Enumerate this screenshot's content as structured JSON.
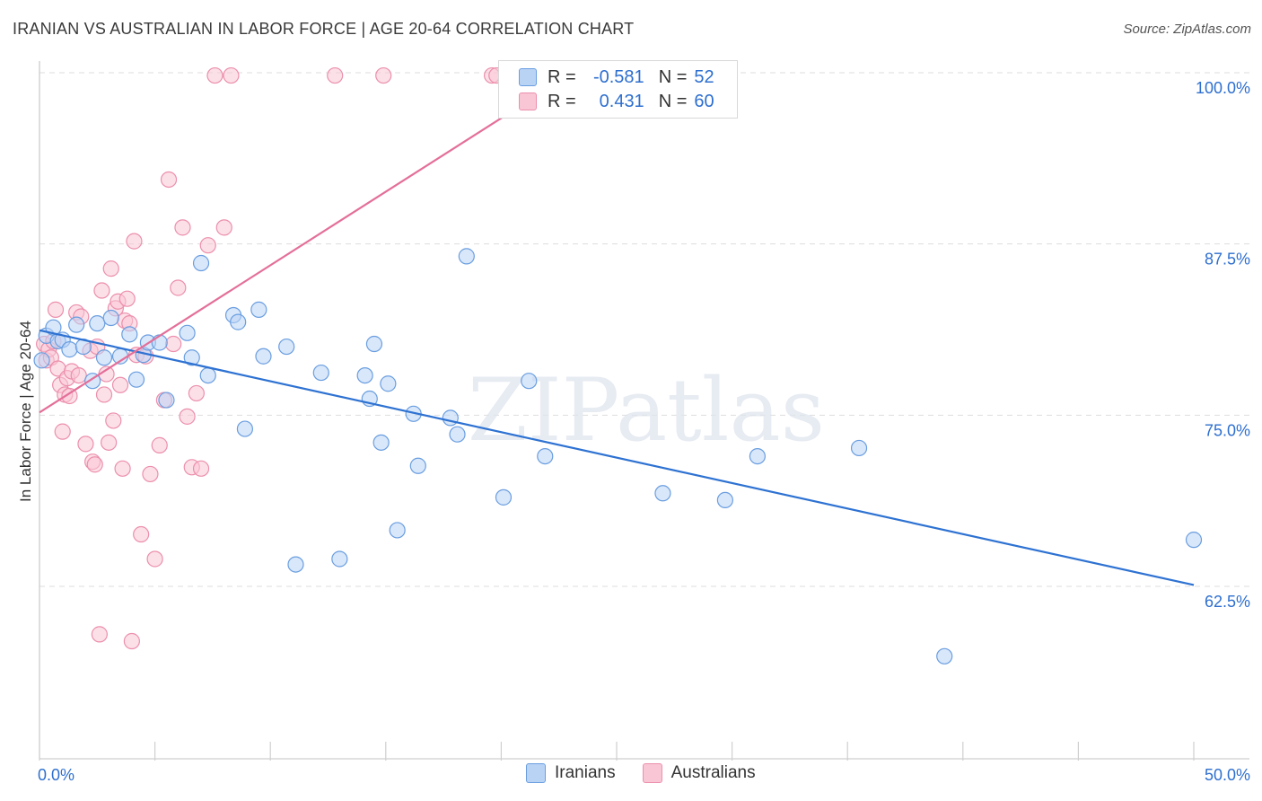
{
  "title": "IRANIAN VS AUSTRALIAN IN LABOR FORCE | AGE 20-64 CORRELATION CHART",
  "source": "Source: ZipAtlas.com",
  "watermark": "ZIPatlas",
  "colors": {
    "blue_fill": "#b9d3f5",
    "blue_stroke": "#6a9ee0",
    "blue_line": "#2e72d2",
    "pink_fill": "#f9c6d5",
    "pink_stroke": "#ec8fac",
    "pink_line": "#e46f99",
    "tick_label": "#2e6fcf",
    "grid": "#dddddd"
  },
  "legend_top": {
    "rows": [
      {
        "r_label": "R =",
        "r_value": "-0.581",
        "n_label": "N =",
        "n_value": "52"
      },
      {
        "r_label": "R =",
        "r_value": " 0.431",
        "n_label": "N =",
        "n_value": "60"
      }
    ]
  },
  "chart_data": {
    "type": "scatter",
    "title": "IRANIAN VS AUSTRALIAN IN LABOR FORCE | AGE 20-64 CORRELATION CHART",
    "xlabel": "",
    "ylabel": "In Labor Force | Age 20-64",
    "xlim": [
      0,
      50
    ],
    "ylim": [
      50,
      100.5
    ],
    "x_tick_labels": [
      "0.0%",
      "50.0%"
    ],
    "y_ticks": [
      62.5,
      75.0,
      87.5,
      100.0
    ],
    "y_tick_labels": [
      "62.5%",
      "75.0%",
      "87.5%",
      "100.0%"
    ],
    "grid": true,
    "legend_position": "bottom",
    "series": [
      {
        "name": "Iranians",
        "r": -0.581,
        "n": 52,
        "trend": {
          "x": [
            0.0,
            50.0
          ],
          "y": [
            81.2,
            62.6
          ]
        },
        "x": [
          0.1,
          0.3,
          0.6,
          0.8,
          1.0,
          1.3,
          1.6,
          1.9,
          2.3,
          2.5,
          2.8,
          3.1,
          3.5,
          3.9,
          4.2,
          4.5,
          4.7,
          5.2,
          5.5,
          6.4,
          6.6,
          7.0,
          7.3,
          8.4,
          8.6,
          8.9,
          9.5,
          9.7,
          10.7,
          11.1,
          12.2,
          13.0,
          14.1,
          14.3,
          14.5,
          14.8,
          15.1,
          15.5,
          16.2,
          16.4,
          17.8,
          18.1,
          18.5,
          20.1,
          21.2,
          21.9,
          27.0,
          29.7,
          31.1,
          35.5,
          39.2,
          50.0
        ],
        "y": [
          79.0,
          80.8,
          81.4,
          80.4,
          80.5,
          79.8,
          81.6,
          80.0,
          77.5,
          81.7,
          79.2,
          82.1,
          79.3,
          80.9,
          77.6,
          79.4,
          80.3,
          80.3,
          76.1,
          81.0,
          79.2,
          86.1,
          77.9,
          82.3,
          81.8,
          74.0,
          82.7,
          79.3,
          80.0,
          64.1,
          78.1,
          64.5,
          77.9,
          76.2,
          80.2,
          73.0,
          77.3,
          66.6,
          75.1,
          71.3,
          74.8,
          73.6,
          86.6,
          69.0,
          77.5,
          72.0,
          69.3,
          68.8,
          72.0,
          72.6,
          57.4,
          65.9
        ]
      },
      {
        "name": "Australians",
        "r": 0.431,
        "n": 60,
        "trend": {
          "x": [
            0.0,
            20.2
          ],
          "y": [
            75.2,
            96.9
          ]
        },
        "x": [
          0.2,
          0.3,
          0.4,
          0.5,
          0.6,
          0.7,
          0.8,
          0.9,
          1.0,
          1.1,
          1.2,
          1.3,
          1.4,
          1.6,
          1.7,
          1.8,
          2.0,
          2.2,
          2.3,
          2.4,
          2.5,
          2.6,
          2.7,
          2.8,
          2.9,
          3.0,
          3.1,
          3.2,
          3.3,
          3.4,
          3.5,
          3.6,
          3.7,
          3.8,
          3.9,
          4.0,
          4.1,
          4.2,
          4.4,
          4.6,
          4.8,
          5.0,
          5.2,
          5.4,
          5.6,
          5.8,
          6.0,
          6.2,
          6.4,
          6.6,
          6.8,
          7.0,
          7.3,
          7.6,
          8.0,
          8.3,
          12.8,
          14.9,
          19.6,
          19.8
        ],
        "y": [
          80.2,
          79.0,
          79.8,
          79.2,
          80.4,
          82.7,
          78.4,
          77.2,
          73.8,
          76.5,
          77.7,
          76.4,
          78.2,
          82.5,
          77.9,
          82.2,
          72.9,
          79.7,
          71.6,
          71.4,
          80.0,
          59.0,
          84.1,
          76.5,
          78.0,
          73.0,
          85.7,
          74.6,
          82.8,
          83.3,
          77.2,
          71.1,
          81.9,
          83.5,
          81.7,
          58.5,
          87.7,
          79.4,
          66.3,
          79.3,
          70.7,
          64.5,
          72.8,
          76.1,
          92.2,
          80.2,
          84.3,
          88.7,
          74.9,
          71.2,
          76.6,
          71.1,
          87.4,
          99.8,
          88.7,
          99.8,
          99.8,
          99.8,
          99.8,
          99.8
        ]
      }
    ]
  },
  "legend_bottom": {
    "items": [
      {
        "label": "Iranians"
      },
      {
        "label": "Australians"
      }
    ]
  }
}
